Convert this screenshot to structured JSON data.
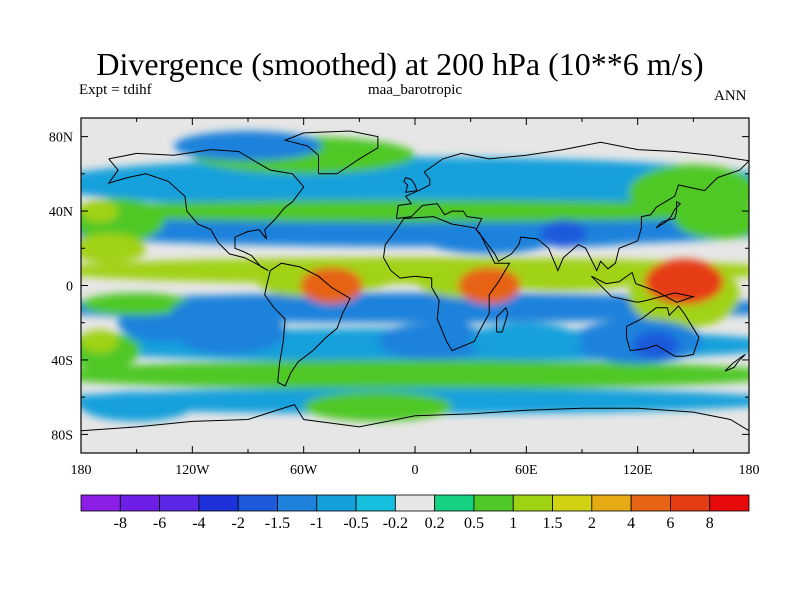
{
  "header": {
    "title": "Divergence (smoothed) at 200 hPa (10**6 m/s)",
    "left_label": "Expt = tdihf",
    "center_label": "maa_barotropic",
    "right_label": "ANN"
  },
  "chart_data": {
    "type": "heatmap",
    "title": "Divergence (smoothed) at 200 hPa (10**6 m/s)",
    "xlabel": "",
    "ylabel": "",
    "xlim": [
      -180,
      180
    ],
    "ylim": [
      -90,
      90
    ],
    "x_ticks": [
      {
        "value": -180,
        "label": "180"
      },
      {
        "value": -120,
        "label": "120W"
      },
      {
        "value": -60,
        "label": "60W"
      },
      {
        "value": 0,
        "label": "0"
      },
      {
        "value": 60,
        "label": "60E"
      },
      {
        "value": 120,
        "label": "120E"
      },
      {
        "value": 180,
        "label": "180"
      }
    ],
    "y_ticks": [
      {
        "value": 80,
        "label": "80N"
      },
      {
        "value": 40,
        "label": "40N"
      },
      {
        "value": 0,
        "label": "0"
      },
      {
        "value": -40,
        "label": "40S"
      },
      {
        "value": -80,
        "label": "80S"
      }
    ],
    "contour_levels": [
      "-8",
      "-6",
      "-4",
      "-2",
      "-1.5",
      "-1",
      "-0.5",
      "-0.2",
      "0.2",
      "0.5",
      "1",
      "1.5",
      "2",
      "4",
      "6",
      "8"
    ],
    "colorbar_colors": [
      "#8c1ee6",
      "#6e1ee6",
      "#5a28e6",
      "#1e32dc",
      "#1e5adc",
      "#1e82dc",
      "#14a0dc",
      "#14bedc",
      "#e6e6e6",
      "#14d282",
      "#50c828",
      "#a0d214",
      "#d2d214",
      "#e6aa14",
      "#e66414",
      "#e63c14",
      "#e60a0a"
    ],
    "field_features": [
      {
        "lon": 40,
        "lat": 0,
        "value": 4
      },
      {
        "lon": 145,
        "lat": 2,
        "value": 6
      },
      {
        "lon": -45,
        "lat": 0,
        "value": 4
      },
      {
        "lon": 80,
        "lat": 28,
        "value": -2
      },
      {
        "lon": 130,
        "lat": -32,
        "value": -2
      },
      {
        "lon": -120,
        "lat": -15,
        "value": -1.5
      },
      {
        "lon": 20,
        "lat": -25,
        "value": -1.5
      },
      {
        "lon": -170,
        "lat": -30,
        "value": 1
      },
      {
        "lon": -170,
        "lat": 40,
        "value": 1
      }
    ]
  }
}
